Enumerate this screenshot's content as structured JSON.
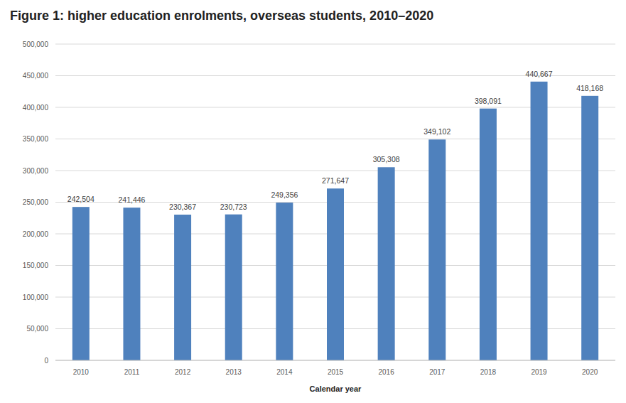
{
  "chart_data": {
    "type": "bar",
    "title": "Figure 1: higher education enrolments, overseas students, 2010–2020",
    "x_label": "Calendar year",
    "categories": [
      "2010",
      "2011",
      "2012",
      "2013",
      "2014",
      "2015",
      "2016",
      "2017",
      "2018",
      "2019",
      "2020"
    ],
    "values": [
      242504,
      241446,
      230367,
      230723,
      249356,
      271647,
      305308,
      349102,
      398091,
      440667,
      418168
    ],
    "value_labels": [
      "242,504",
      "241,446",
      "230,367",
      "230,723",
      "249,356",
      "271,647",
      "305,308",
      "349,102",
      "398,091",
      "440,667",
      "418,168"
    ],
    "color": "#4f81bd",
    "ylim": [
      0,
      500000
    ],
    "yticks": [
      0,
      {
        "value": 50000,
        "label": "50,000"
      },
      {
        "value": 100000,
        "label": "100,000"
      },
      {
        "value": 150000,
        "label": "150,000"
      },
      {
        "value": 200000,
        "label": "200,000"
      },
      {
        "value": 250000,
        "label": "250,000"
      },
      {
        "value": 300000,
        "label": "300,000"
      },
      {
        "value": 350000,
        "label": "350,000"
      },
      {
        "value": 400000,
        "label": "400,000"
      },
      {
        "value": 450000,
        "label": "450,000"
      },
      {
        "value": 500000,
        "label": "500,000"
      }
    ],
    "grid": true,
    "data_labels": true
  }
}
